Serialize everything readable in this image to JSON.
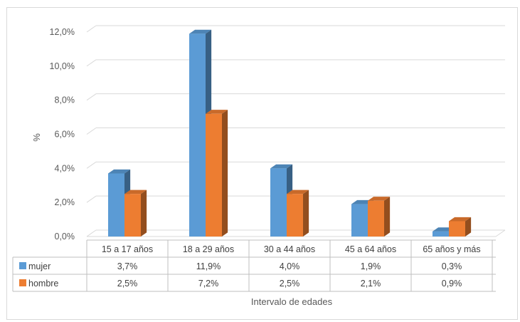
{
  "chart_data": {
    "type": "bar",
    "style": "3d-clustered-column-with-data-table",
    "categories": [
      "15 a 17 años",
      "18 a 29 años",
      "30 a 44 años",
      "45 a 64 años",
      "65 años y más"
    ],
    "series": [
      {
        "name": "mujer",
        "color": "#5b9bd5",
        "values": [
          3.7,
          11.9,
          4.0,
          1.9,
          0.3
        ],
        "labels": [
          "3,7%",
          "11,9%",
          "4,0%",
          "1,9%",
          "0,3%"
        ]
      },
      {
        "name": "hombre",
        "color": "#ed7d31",
        "values": [
          2.5,
          7.2,
          2.5,
          2.1,
          0.9
        ],
        "labels": [
          "2,5%",
          "7,2%",
          "2,5%",
          "2,1%",
          "0,9%"
        ]
      }
    ],
    "xlabel": "Intervalo de edades",
    "ylabel": "%",
    "ylim": [
      0,
      12
    ],
    "yticks": [
      0,
      2,
      4,
      6,
      8,
      10,
      12
    ],
    "ytick_labels": [
      "0,0%",
      "2,0%",
      "4,0%",
      "6,0%",
      "8,0%",
      "10,0%",
      "12,0%"
    ],
    "grid": true,
    "legend": "data-table-keys"
  }
}
